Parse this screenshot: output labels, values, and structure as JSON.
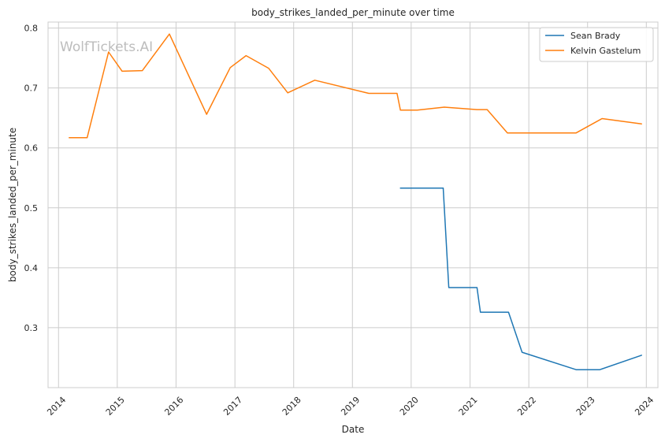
{
  "chart_data": {
    "type": "line",
    "title": "body_strikes_landed_per_minute over time",
    "xlabel": "Date",
    "ylabel": "body_strikes_landed_per_minute",
    "watermark": "WolfTickets.AI",
    "x_ticks": [
      "2014",
      "2015",
      "2016",
      "2017",
      "2018",
      "2019",
      "2020",
      "2021",
      "2022",
      "2023",
      "2024"
    ],
    "y_ticks": [
      "0.3",
      "0.4",
      "0.5",
      "0.6",
      "0.7",
      "0.8"
    ],
    "xlim": [
      "2013-10-28",
      "2024-03-13"
    ],
    "ylim": [
      0.2,
      0.81
    ],
    "grid": true,
    "legend_position": "top-right",
    "series": [
      {
        "name": "Sean Brady",
        "color": "#1f77b4",
        "points": [
          [
            "2019-10-26",
            0.533
          ],
          [
            "2020-07-18",
            0.533
          ],
          [
            "2020-08-22",
            0.367
          ],
          [
            "2021-02-13",
            0.367
          ],
          [
            "2021-03-06",
            0.326
          ],
          [
            "2021-08-28",
            0.326
          ],
          [
            "2021-11-20",
            0.259
          ],
          [
            "2022-10-22",
            0.23
          ],
          [
            "2023-03-18",
            0.23
          ],
          [
            "2023-12-02",
            0.254
          ]
        ]
      },
      {
        "name": "Kelvin Gastelum",
        "color": "#ff7f0e",
        "points": [
          [
            "2014-03-08",
            0.617
          ],
          [
            "2014-06-28",
            0.617
          ],
          [
            "2014-11-08",
            0.76
          ],
          [
            "2015-01-31",
            0.728
          ],
          [
            "2015-06-06",
            0.729
          ],
          [
            "2015-11-21",
            0.79
          ],
          [
            "2016-07-09",
            0.656
          ],
          [
            "2016-12-03",
            0.734
          ],
          [
            "2017-03-11",
            0.754
          ],
          [
            "2017-07-29",
            0.733
          ],
          [
            "2017-11-25",
            0.692
          ],
          [
            "2018-05-12",
            0.713
          ],
          [
            "2019-04-13",
            0.691
          ],
          [
            "2019-10-05",
            0.691
          ],
          [
            "2019-10-26",
            0.663
          ],
          [
            "2020-02-08",
            0.663
          ],
          [
            "2020-07-25",
            0.668
          ],
          [
            "2021-02-13",
            0.664
          ],
          [
            "2021-04-17",
            0.664
          ],
          [
            "2021-08-21",
            0.625
          ],
          [
            "2022-10-22",
            0.625
          ],
          [
            "2023-04-01",
            0.649
          ],
          [
            "2023-12-02",
            0.64
          ]
        ]
      }
    ]
  }
}
